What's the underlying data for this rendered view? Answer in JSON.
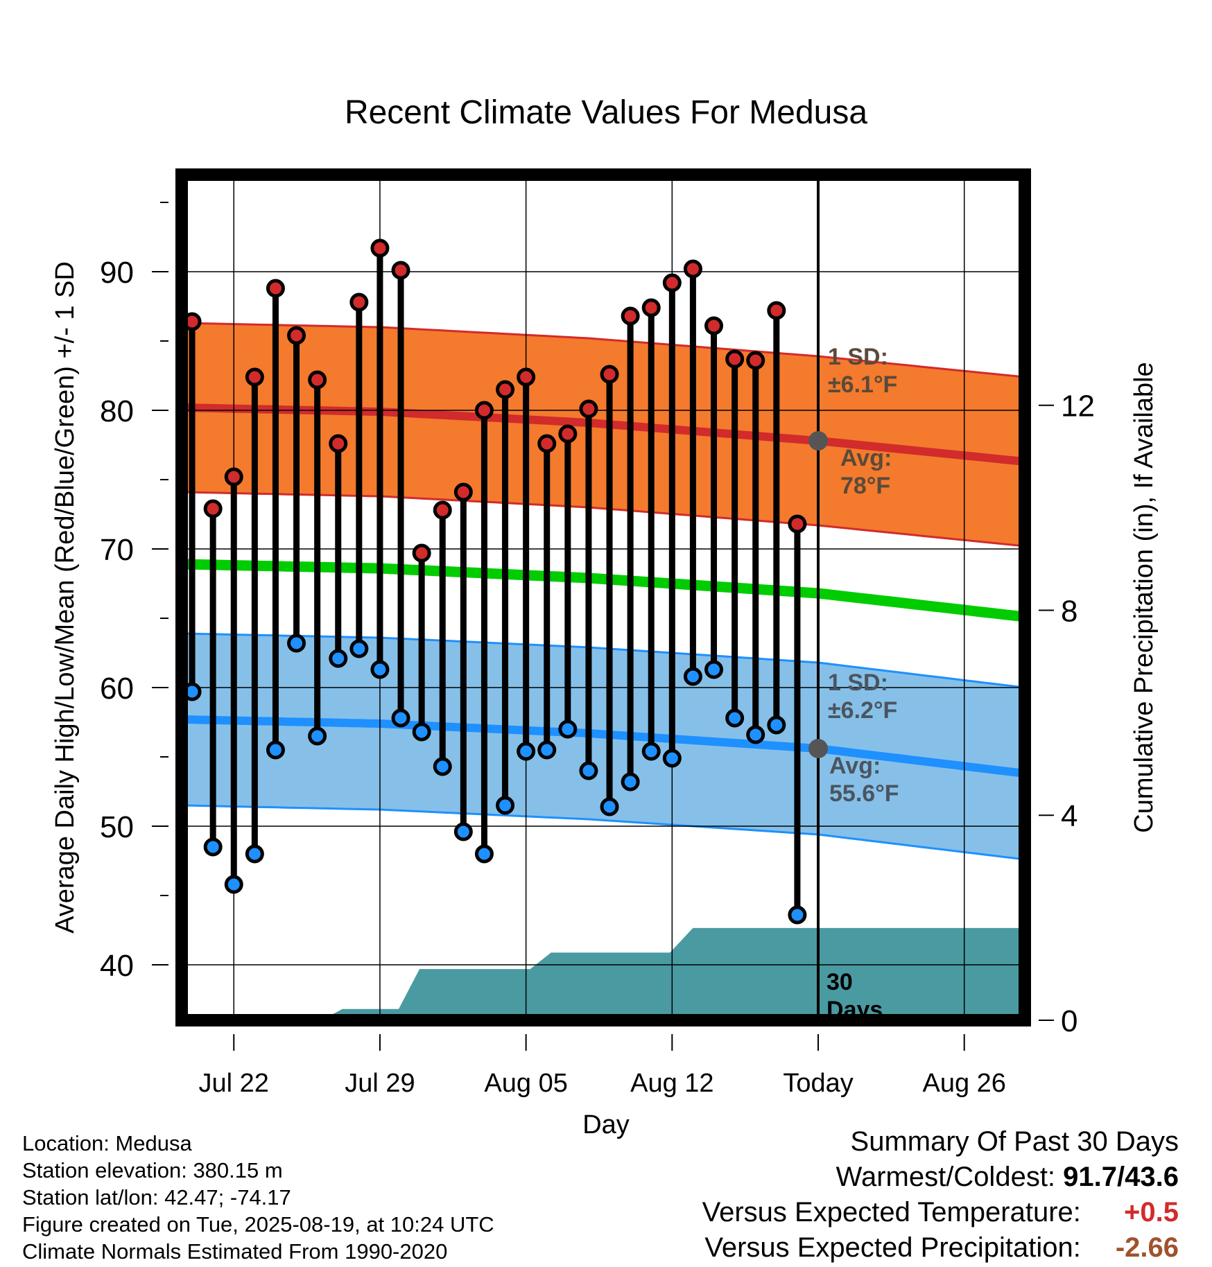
{
  "title": "Recent Climate Values For Medusa",
  "chart_data": {
    "type": "line",
    "title": "Recent Climate Values For Medusa",
    "xlabel": "Day",
    "ylabel": "Average Daily High/Low/Mean (Red/Blue/Green) +/- 1 SD",
    "y2label": "Cumulative Precipitation (in), If Available",
    "x_tick_labels": [
      {
        "day": 3,
        "label": "Jul 22"
      },
      {
        "day": 10,
        "label": "Jul 29"
      },
      {
        "day": 17,
        "label": "Aug 05"
      },
      {
        "day": 24,
        "label": "Aug 12"
      },
      {
        "day": 31,
        "label": "Today"
      },
      {
        "day": 38,
        "label": "Aug 26"
      }
    ],
    "today_day": 31,
    "xlim": [
      0.5,
      40.9
    ],
    "ylim": [
      36,
      97
    ],
    "y_ticks": [
      40,
      50,
      60,
      70,
      80,
      90
    ],
    "y2lim": [
      0,
      16.5
    ],
    "y2_ticks": [
      0,
      4,
      8,
      12
    ],
    "grid": true,
    "days": [
      1,
      2,
      3,
      4,
      5,
      6,
      7,
      8,
      9,
      10,
      11,
      12,
      13,
      14,
      15,
      16,
      17,
      18,
      19,
      20,
      21,
      22,
      23,
      24,
      25,
      26,
      27,
      28,
      29,
      30
    ],
    "series": [
      {
        "name": "High",
        "color": "#d22b2b",
        "values": [
          86.4,
          72.9,
          75.2,
          82.4,
          88.8,
          85.4,
          82.2,
          77.6,
          87.8,
          91.7,
          90.1,
          69.7,
          72.8,
          74.1,
          80.0,
          81.5,
          82.4,
          77.6,
          78.3,
          80.1,
          82.6,
          86.8,
          87.4,
          89.2,
          90.2,
          86.1,
          83.7,
          83.6,
          87.2,
          71.8
        ]
      },
      {
        "name": "Low",
        "color": "#1e90ff",
        "values": [
          59.7,
          48.5,
          45.8,
          48.0,
          55.5,
          63.2,
          56.5,
          62.1,
          62.8,
          61.3,
          57.8,
          56.8,
          54.3,
          49.6,
          48.0,
          51.5,
          55.4,
          55.5,
          57.0,
          54.0,
          51.4,
          53.2,
          55.4,
          54.9,
          60.8,
          61.3,
          57.8,
          56.6,
          57.3,
          43.6
        ]
      }
    ],
    "normals": {
      "x": [
        0.5,
        10,
        20,
        31,
        40.9
      ],
      "high_mean": [
        80.2,
        79.9,
        79.1,
        77.8,
        76.3
      ],
      "high_sd": 6.1,
      "low_mean": [
        57.7,
        57.4,
        56.7,
        55.6,
        53.8
      ],
      "low_sd": 6.2,
      "mean": [
        68.9,
        68.6,
        67.9,
        66.8,
        65.1
      ],
      "high_color": "#f47a2d",
      "high_line_color": "#d22b2b",
      "low_color": "#86c0e8",
      "low_line_color": "#1e90ff",
      "mean_color": "#00cc00"
    },
    "precipitation": {
      "color": "#4a9aa2",
      "x": [
        0.5,
        7.2,
        8.2,
        9.5,
        10.9,
        11.9,
        17.2,
        18.2,
        19.7,
        23.9,
        25.0,
        40.9
      ],
      "values": [
        0,
        0,
        0.22,
        0.22,
        0.22,
        1.0,
        1.0,
        1.32,
        1.32,
        1.32,
        1.8,
        1.8
      ]
    },
    "annotations": {
      "high_sd": [
        "1 SD:",
        "±6.1°F"
      ],
      "high_avg": [
        "Avg:",
        "78°F"
      ],
      "low_sd": [
        "1 SD:",
        "±6.2°F"
      ],
      "low_avg": [
        "Avg:",
        "55.6°F"
      ],
      "window": [
        "30",
        "Days"
      ],
      "today_high_avg": 77.8,
      "today_low_avg": 55.6
    }
  },
  "info": {
    "location": "Location: Medusa",
    "elevation": "Station elevation: 380.15 m",
    "latlon": "Station lat/lon: 42.47; -74.17",
    "created": "Figure created on Tue, 2025-08-19, at 10:24 UTC",
    "normals": "Climate Normals Estimated From 1990-2020"
  },
  "summary": {
    "heading": "Summary Of Past 30 Days",
    "warm_cold_label": "Warmest/Coldest:",
    "warm_cold_value": "91.7/43.6",
    "temp_label": "Versus Expected Temperature:",
    "temp_value": "+0.5",
    "temp_color": "#d22b2b",
    "precip_label": "Versus Expected Precipitation:",
    "precip_value": "-2.66",
    "precip_color": "#a0522d"
  }
}
